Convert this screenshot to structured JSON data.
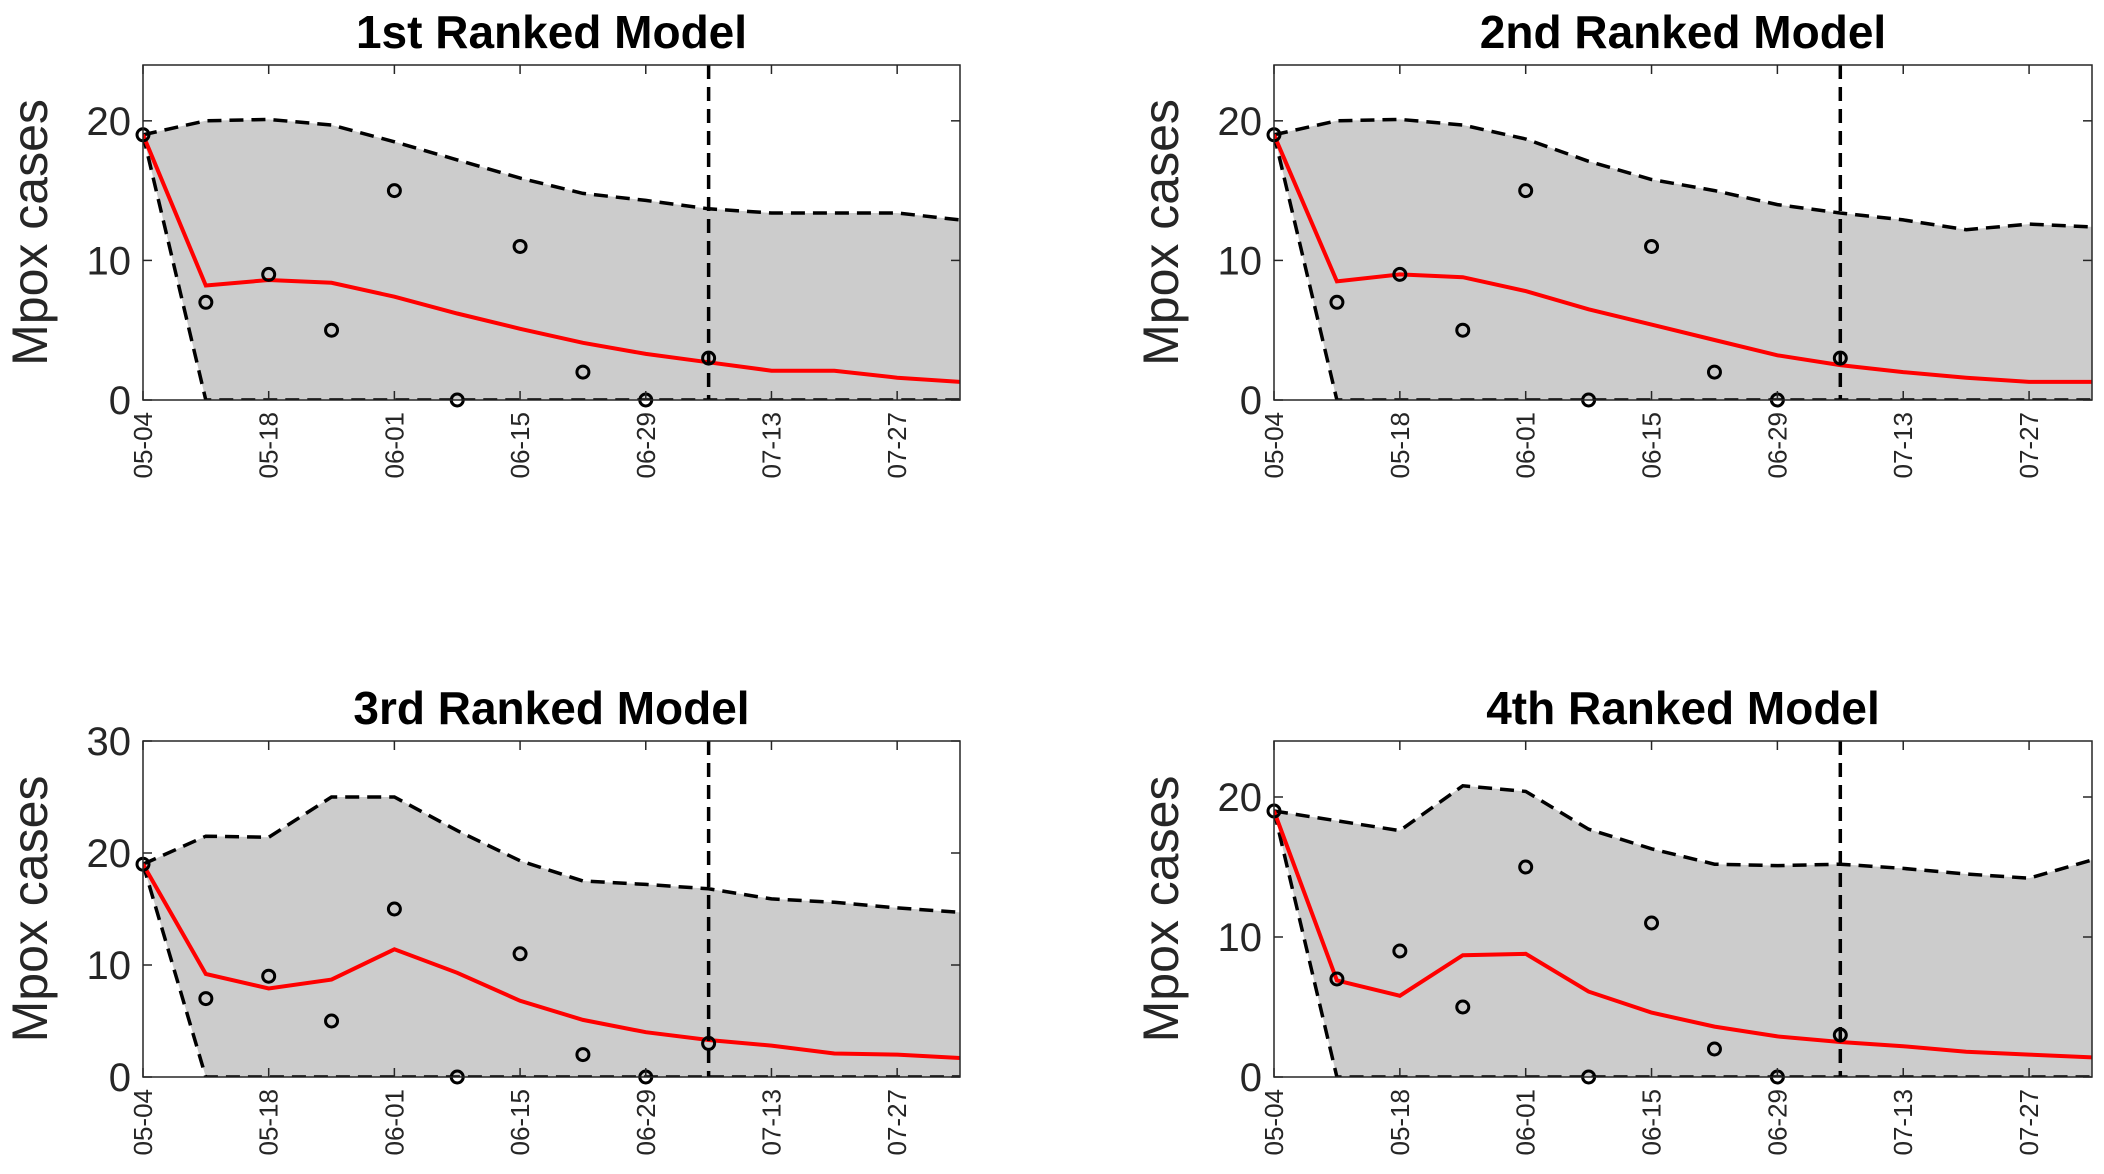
{
  "figure": {
    "ylabel": "Mpox cases"
  },
  "chart_data": [
    {
      "type": "line",
      "title": "1st Ranked Model",
      "ylabel": "Mpox cases",
      "xlabel": "",
      "ylim": [
        0,
        24
      ],
      "yticks": [
        0,
        10,
        20
      ],
      "xticks": [
        "05-04",
        "05-18",
        "06-01",
        "06-15",
        "06-29",
        "07-13",
        "07-27"
      ],
      "x": [
        0,
        1,
        2,
        3,
        4,
        5,
        6,
        7,
        8,
        9,
        10,
        11,
        12,
        13
      ],
      "x_range": [
        0,
        13
      ],
      "observed": [
        19,
        7,
        9,
        5,
        15,
        0,
        11,
        2,
        0,
        3
      ],
      "forecast_start": 9,
      "series": [
        {
          "values": [
            19,
            8.2,
            8.6,
            8.4,
            7.4,
            6.2,
            5.1,
            4.1,
            3.3,
            2.7,
            2.1,
            2.1,
            1.6,
            1.3
          ]
        },
        {
          "values": [
            19,
            20.0,
            20.1,
            19.7,
            18.5,
            17.2,
            15.9,
            14.8,
            14.3,
            13.7,
            13.4,
            13.4,
            13.4,
            12.9
          ]
        },
        {
          "values": [
            19,
            0,
            0,
            0,
            0,
            0,
            0,
            0,
            0,
            0,
            0,
            0,
            0,
            0
          ]
        }
      ]
    },
    {
      "type": "line",
      "title": "2nd Ranked Model",
      "ylabel": "Mpox cases",
      "xlabel": "",
      "ylim": [
        0,
        24
      ],
      "yticks": [
        0,
        10,
        20
      ],
      "xticks": [
        "05-04",
        "05-18",
        "06-01",
        "06-15",
        "06-29",
        "07-13",
        "07-27"
      ],
      "x": [
        0,
        1,
        2,
        3,
        4,
        5,
        6,
        7,
        8,
        9,
        10,
        11,
        12,
        13
      ],
      "x_range": [
        0,
        13
      ],
      "observed": [
        19,
        7,
        9,
        5,
        15,
        0,
        11,
        2,
        0,
        3
      ],
      "forecast_start": 9,
      "series": [
        {
          "values": [
            19,
            8.5,
            9.0,
            8.8,
            7.8,
            6.5,
            5.4,
            4.3,
            3.2,
            2.5,
            2.0,
            1.6,
            1.3,
            1.3
          ]
        },
        {
          "values": [
            19,
            20.0,
            20.1,
            19.7,
            18.7,
            17.1,
            15.8,
            15.0,
            14.0,
            13.4,
            12.9,
            12.2,
            12.6,
            12.4
          ]
        },
        {
          "values": [
            19,
            0,
            0,
            0,
            0,
            0,
            0,
            0,
            0,
            0,
            0,
            0,
            0,
            0
          ]
        }
      ]
    },
    {
      "type": "line",
      "title": "3rd Ranked Model",
      "ylabel": "Mpox cases",
      "xlabel": "",
      "ylim": [
        0,
        30
      ],
      "yticks": [
        0,
        10,
        20,
        30
      ],
      "xticks": [
        "05-04",
        "05-18",
        "06-01",
        "06-15",
        "06-29",
        "07-13",
        "07-27"
      ],
      "x": [
        0,
        1,
        2,
        3,
        4,
        5,
        6,
        7,
        8,
        9,
        10,
        11,
        12,
        13
      ],
      "x_range": [
        0,
        13
      ],
      "observed": [
        19,
        7,
        9,
        5,
        15,
        0,
        11,
        2,
        0,
        3
      ],
      "forecast_start": 9,
      "series": [
        {
          "values": [
            19,
            9.2,
            7.9,
            8.7,
            11.4,
            9.3,
            6.8,
            5.1,
            4.0,
            3.3,
            2.8,
            2.1,
            2.0,
            1.7
          ]
        },
        {
          "values": [
            19,
            21.5,
            21.4,
            25.0,
            25.0,
            22.0,
            19.3,
            17.5,
            17.2,
            16.8,
            15.9,
            15.6,
            15.1,
            14.7
          ]
        },
        {
          "values": [
            19,
            0,
            0,
            0,
            0,
            0,
            0,
            0,
            0,
            0,
            0,
            0,
            0,
            0
          ]
        }
      ]
    },
    {
      "type": "line",
      "title": "4th Ranked Model",
      "ylabel": "Mpox cases",
      "xlabel": "",
      "ylim": [
        0,
        24
      ],
      "yticks": [
        0,
        10,
        20
      ],
      "xticks": [
        "05-04",
        "05-18",
        "06-01",
        "06-15",
        "06-29",
        "07-13",
        "07-27"
      ],
      "x": [
        0,
        1,
        2,
        3,
        4,
        5,
        6,
        7,
        8,
        9,
        10,
        11,
        12,
        13
      ],
      "x_range": [
        0,
        13
      ],
      "observed": [
        19,
        7,
        9,
        5,
        15,
        0,
        11,
        2,
        0,
        3
      ],
      "forecast_start": 9,
      "series": [
        {
          "values": [
            19,
            6.9,
            5.8,
            8.7,
            8.8,
            6.1,
            4.6,
            3.6,
            2.9,
            2.5,
            2.2,
            1.8,
            1.6,
            1.4
          ]
        },
        {
          "values": [
            19,
            18.3,
            17.6,
            20.8,
            20.4,
            17.7,
            16.3,
            15.2,
            15.1,
            15.2,
            14.9,
            14.5,
            14.2,
            15.5
          ]
        },
        {
          "values": [
            19,
            0,
            0,
            0,
            0,
            0,
            0,
            0,
            0,
            0,
            0,
            0,
            0,
            0
          ]
        }
      ]
    }
  ],
  "colors": {
    "band_fill": "#cccccc",
    "median_line": "#ff0000",
    "bounds": "#000000",
    "observed_marker": "#000000",
    "axis": "#262626",
    "tick_text": "#262626",
    "title_text": "#000000"
  }
}
